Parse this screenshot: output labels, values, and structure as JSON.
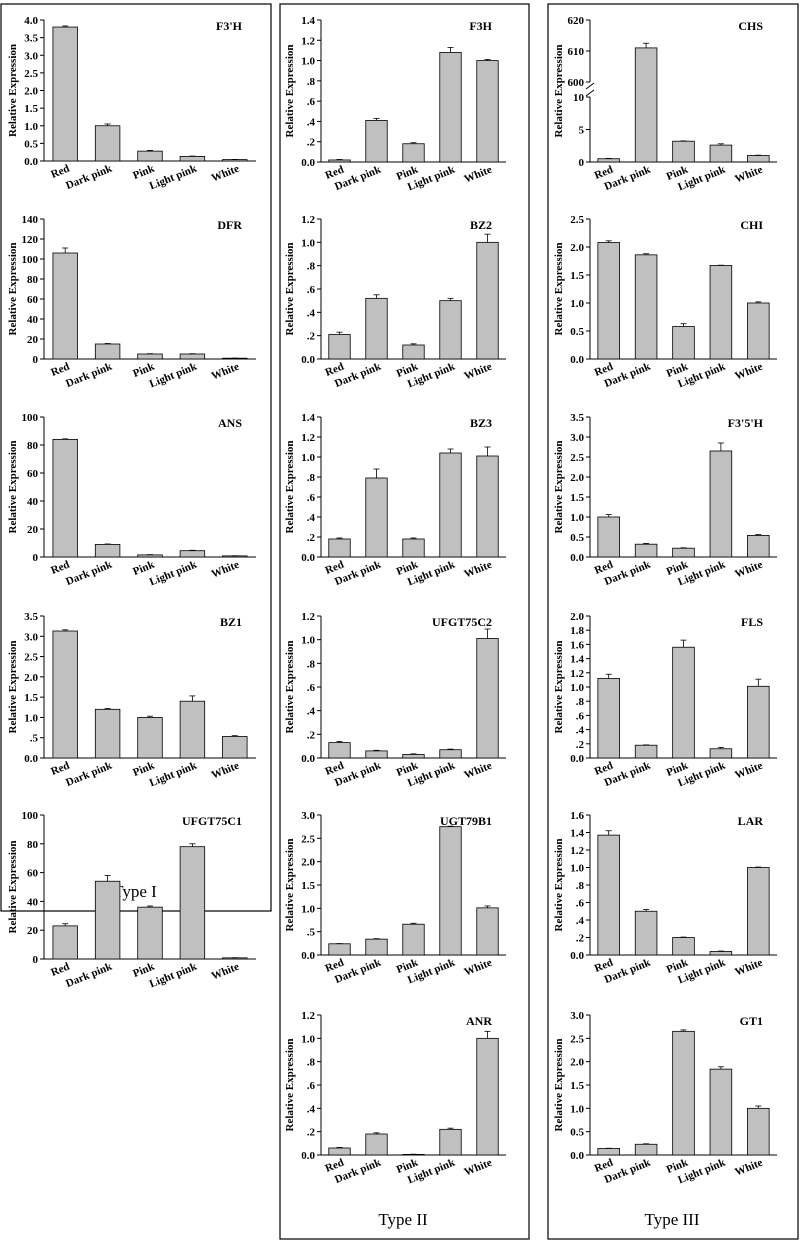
{
  "figure": {
    "groups": [
      {
        "label": "Type I"
      },
      {
        "label": "Type II"
      },
      {
        "label": "Type III"
      }
    ],
    "ylabel": "Relative Expression"
  },
  "colors": {
    "bar_fill": "#c0c0c0",
    "bar_stroke": "#000000",
    "frame": "#000000"
  },
  "chart_data": [
    {
      "type": "bar",
      "group": "Type I",
      "title": "F3'H",
      "categories": [
        "Red",
        "Dark pink",
        "Pink",
        "Light pink",
        "White"
      ],
      "values": [
        3.8,
        1.0,
        0.28,
        0.13,
        0.04
      ],
      "errors": [
        0.03,
        0.05,
        0.02,
        0.01,
        0.005
      ],
      "ylabel": "Relative Expression",
      "ylim": [
        0,
        4.0
      ],
      "yticks": [
        0,
        0.5,
        1,
        1.5,
        2,
        2.5,
        3,
        3.5,
        4
      ],
      "yticklabels": [
        "0.0",
        "0.5",
        "1.0",
        "1.5",
        "2.0",
        "2.5",
        "3.0",
        "3.5",
        "4.0"
      ]
    },
    {
      "type": "bar",
      "group": "Type I",
      "title": "DFR",
      "categories": [
        "Red",
        "Dark pink",
        "Pink",
        "Light pink",
        "White"
      ],
      "values": [
        106,
        15,
        5,
        5,
        0.8
      ],
      "errors": [
        5,
        0.5,
        0.3,
        0.3,
        0.1
      ],
      "ylabel": "Relative Expression",
      "ylim": [
        0,
        140
      ],
      "yticks": [
        0,
        20,
        40,
        60,
        80,
        100,
        120,
        140
      ],
      "yticklabels": [
        "0",
        "20",
        "40",
        "60",
        "80",
        "100",
        "120",
        "140"
      ]
    },
    {
      "type": "bar",
      "group": "Type I",
      "title": "ANS",
      "categories": [
        "Red",
        "Dark pink",
        "Pink",
        "Light pink",
        "White"
      ],
      "values": [
        84,
        9,
        1.5,
        4.5,
        0.8
      ],
      "errors": [
        0.4,
        0.3,
        0.2,
        0.3,
        0.1
      ],
      "ylabel": "Relative Expression",
      "ylim": [
        0,
        100
      ],
      "yticks": [
        0,
        20,
        40,
        60,
        80,
        100
      ],
      "yticklabels": [
        "0",
        "20",
        "40",
        "60",
        "80",
        "100"
      ]
    },
    {
      "type": "bar",
      "group": "Type I",
      "title": "BZ1",
      "categories": [
        "Red",
        "Dark pink",
        "Pink",
        "Light pink",
        "White"
      ],
      "values": [
        3.13,
        1.2,
        1.0,
        1.4,
        0.53
      ],
      "errors": [
        0.03,
        0.02,
        0.03,
        0.13,
        0.02
      ],
      "ylabel": "Relative Expression",
      "ylim": [
        0,
        3.5
      ],
      "yticks": [
        0,
        0.5,
        1,
        1.5,
        2,
        2.5,
        3,
        3.5
      ],
      "yticklabels": [
        "0.0",
        ".5",
        "1.0",
        "1.5",
        "2.0",
        "2.5",
        "3.0",
        "3.5"
      ]
    },
    {
      "type": "bar",
      "group": "Type I",
      "title": "UFGT75C1",
      "categories": [
        "Red",
        "Dark pink",
        "Pink",
        "Light pink",
        "White"
      ],
      "values": [
        23,
        54,
        36,
        78,
        0.8
      ],
      "errors": [
        1.5,
        4,
        0.8,
        2,
        0.1
      ],
      "ylabel": "Relative Expression",
      "ylim": [
        0,
        100
      ],
      "yticks": [
        0,
        20,
        40,
        60,
        80,
        100
      ],
      "yticklabels": [
        "0",
        "20",
        "40",
        "60",
        "80",
        "100"
      ]
    },
    {
      "type": "bar",
      "group": "Type II",
      "title": "F3H",
      "categories": [
        "Red",
        "Dark pink",
        "Pink",
        "Light pink",
        "White"
      ],
      "values": [
        0.02,
        0.41,
        0.18,
        1.08,
        1.0
      ],
      "errors": [
        0.005,
        0.02,
        0.01,
        0.05,
        0.01
      ],
      "ylabel": "Relative Expression",
      "ylim": [
        0,
        1.4
      ],
      "yticks": [
        0,
        0.2,
        0.4,
        0.6,
        0.8,
        1.0,
        1.2,
        1.4
      ],
      "yticklabels": [
        "0.0",
        ".2",
        ".4",
        ".6",
        ".8",
        "1.0",
        "1.2",
        "1.4"
      ]
    },
    {
      "type": "bar",
      "group": "Type II",
      "title": "BZ2",
      "categories": [
        "Red",
        "Dark pink",
        "Pink",
        "Light pink",
        "White"
      ],
      "values": [
        0.21,
        0.52,
        0.12,
        0.5,
        1.0
      ],
      "errors": [
        0.02,
        0.03,
        0.01,
        0.02,
        0.07
      ],
      "ylabel": "Relative Expression",
      "ylim": [
        0,
        1.2
      ],
      "yticks": [
        0,
        0.2,
        0.4,
        0.6,
        0.8,
        1.0,
        1.2
      ],
      "yticklabels": [
        "0.0",
        ".2",
        ".4",
        ".6",
        ".8",
        "1.0",
        "1.2"
      ]
    },
    {
      "type": "bar",
      "group": "Type II",
      "title": "BZ3",
      "categories": [
        "Red",
        "Dark pink",
        "Pink",
        "Light pink",
        "White"
      ],
      "values": [
        0.18,
        0.79,
        0.18,
        1.04,
        1.01
      ],
      "errors": [
        0.01,
        0.09,
        0.01,
        0.04,
        0.09
      ],
      "ylabel": "Relative Expression",
      "ylim": [
        0,
        1.4
      ],
      "yticks": [
        0,
        0.2,
        0.4,
        0.6,
        0.8,
        1.0,
        1.2,
        1.4
      ],
      "yticklabels": [
        "0.0",
        ".2",
        ".4",
        ".6",
        ".8",
        "1.0",
        "1.2",
        "1.4"
      ]
    },
    {
      "type": "bar",
      "group": "Type II",
      "title": "UFGT75C2",
      "categories": [
        "Red",
        "Dark pink",
        "Pink",
        "Light pink",
        "White"
      ],
      "values": [
        0.13,
        0.06,
        0.03,
        0.07,
        1.01
      ],
      "errors": [
        0.01,
        0.005,
        0.005,
        0.005,
        0.08
      ],
      "ylabel": "Relative Expression",
      "ylim": [
        0,
        1.2
      ],
      "yticks": [
        0,
        0.2,
        0.4,
        0.6,
        0.8,
        1.0,
        1.2
      ],
      "yticklabels": [
        "0.0",
        ".2",
        ".4",
        ".6",
        ".8",
        "1.0",
        "1.2"
      ]
    },
    {
      "type": "bar",
      "group": "Type II",
      "title": "UGT79B1",
      "categories": [
        "Red",
        "Dark pink",
        "Pink",
        "Light pink",
        "White"
      ],
      "values": [
        0.24,
        0.34,
        0.66,
        2.75,
        1.01
      ],
      "errors": [
        0.005,
        0.01,
        0.02,
        0.01,
        0.04
      ],
      "ylabel": "Relative Expression",
      "ylim": [
        0,
        3.0
      ],
      "yticks": [
        0,
        0.5,
        1,
        1.5,
        2,
        2.5,
        3
      ],
      "yticklabels": [
        "0.0",
        ".5",
        "1.0",
        "1.5",
        "2.0",
        "2.5",
        "3.0"
      ]
    },
    {
      "type": "bar",
      "group": "Type II",
      "title": "ANR",
      "categories": [
        "Red",
        "Dark pink",
        "Pink",
        "Light pink",
        "White"
      ],
      "values": [
        0.06,
        0.18,
        0.005,
        0.22,
        1.0
      ],
      "errors": [
        0.005,
        0.01,
        0.002,
        0.01,
        0.06
      ],
      "ylabel": "Relative Expression",
      "ylim": [
        0,
        1.2
      ],
      "yticks": [
        0,
        0.2,
        0.4,
        0.6,
        0.8,
        1.0,
        1.2
      ],
      "yticklabels": [
        "0.0",
        ".2",
        ".4",
        ".6",
        ".8",
        "1.0",
        "1.2"
      ]
    },
    {
      "type": "bar",
      "group": "Type III",
      "title": "CHS",
      "broken_axis": true,
      "categories": [
        "Red",
        "Dark pink",
        "Pink",
        "Light pink",
        "White"
      ],
      "values": [
        0.5,
        611,
        3.2,
        2.6,
        1.0
      ],
      "errors": [
        0.05,
        1.5,
        0.05,
        0.2,
        0.05
      ],
      "ylabel": "Relative Expression",
      "lower_ylim": [
        0,
        10
      ],
      "lower_yticks": [
        0,
        5,
        10
      ],
      "lower_yticklabels": [
        "0",
        "5",
        "10"
      ],
      "upper_ylim": [
        600,
        620
      ],
      "upper_yticks": [
        600,
        610,
        620
      ],
      "upper_yticklabels": [
        "600",
        "610",
        "620"
      ]
    },
    {
      "type": "bar",
      "group": "Type III",
      "title": "CHI",
      "categories": [
        "Red",
        "Dark pink",
        "Pink",
        "Light pink",
        "White"
      ],
      "values": [
        2.08,
        1.86,
        0.58,
        1.67,
        1.0
      ],
      "errors": [
        0.03,
        0.02,
        0.05,
        0.005,
        0.02
      ],
      "ylabel": "Relative Expression",
      "ylim": [
        0,
        2.5
      ],
      "yticks": [
        0,
        0.5,
        1,
        1.5,
        2,
        2.5
      ],
      "yticklabels": [
        "0.0",
        "0.5",
        "1.0",
        "1.5",
        "2.0",
        "2.5"
      ]
    },
    {
      "type": "bar",
      "group": "Type III",
      "title": "F3'5'H",
      "categories": [
        "Red",
        "Dark pink",
        "Pink",
        "Light pink",
        "White"
      ],
      "values": [
        1.0,
        0.32,
        0.22,
        2.65,
        0.54
      ],
      "errors": [
        0.06,
        0.02,
        0.01,
        0.2,
        0.02
      ],
      "ylabel": "Relative Expression",
      "ylim": [
        0,
        3.5
      ],
      "yticks": [
        0,
        0.5,
        1,
        1.5,
        2,
        2.5,
        3,
        3.5
      ],
      "yticklabels": [
        "0.0",
        "0.5",
        "1.0",
        "1.5",
        "2.0",
        "2.5",
        "3.0",
        "3.5"
      ]
    },
    {
      "type": "bar",
      "group": "Type III",
      "title": "FLS",
      "categories": [
        "Red",
        "Dark pink",
        "Pink",
        "Light pink",
        "White"
      ],
      "values": [
        1.12,
        0.18,
        1.56,
        0.13,
        1.01
      ],
      "errors": [
        0.06,
        0.005,
        0.1,
        0.02,
        0.1
      ],
      "ylabel": "Relative Expression",
      "ylim": [
        0,
        2.0
      ],
      "yticks": [
        0,
        0.2,
        0.4,
        0.6,
        0.8,
        1.0,
        1.2,
        1.4,
        1.6,
        1.8,
        2.0
      ],
      "yticklabels": [
        "0.0",
        ".2",
        ".4",
        ".6",
        ".8",
        "1.0",
        "1.2",
        "1.4",
        "1.6",
        "1.8",
        "2.0"
      ]
    },
    {
      "type": "bar",
      "group": "Type III",
      "title": "LAR",
      "categories": [
        "Red",
        "Dark pink",
        "Pink",
        "Light pink",
        "White"
      ],
      "values": [
        1.37,
        0.5,
        0.2,
        0.04,
        1.0
      ],
      "errors": [
        0.05,
        0.02,
        0.005,
        0.005,
        0.005
      ],
      "ylabel": "Relative Expression",
      "ylim": [
        0,
        1.6
      ],
      "yticks": [
        0,
        0.2,
        0.4,
        0.6,
        0.8,
        1.0,
        1.2,
        1.4,
        1.6
      ],
      "yticklabels": [
        "0.0",
        ".2",
        ".4",
        ".6",
        ".8",
        "1.0",
        "1.2",
        "1.4",
        "1.6"
      ]
    },
    {
      "type": "bar",
      "group": "Type III",
      "title": "GT1",
      "categories": [
        "Red",
        "Dark pink",
        "Pink",
        "Light pink",
        "White"
      ],
      "values": [
        0.14,
        0.23,
        2.65,
        1.84,
        1.0
      ],
      "errors": [
        0.005,
        0.01,
        0.03,
        0.05,
        0.05
      ],
      "ylabel": "Relative Expression",
      "ylim": [
        0,
        3.0
      ],
      "yticks": [
        0,
        0.5,
        1,
        1.5,
        2,
        2.5,
        3
      ],
      "yticklabels": [
        "0.0",
        "0.5",
        "1.0",
        "1.5",
        "2.0",
        "2.5",
        "3.0"
      ]
    }
  ]
}
